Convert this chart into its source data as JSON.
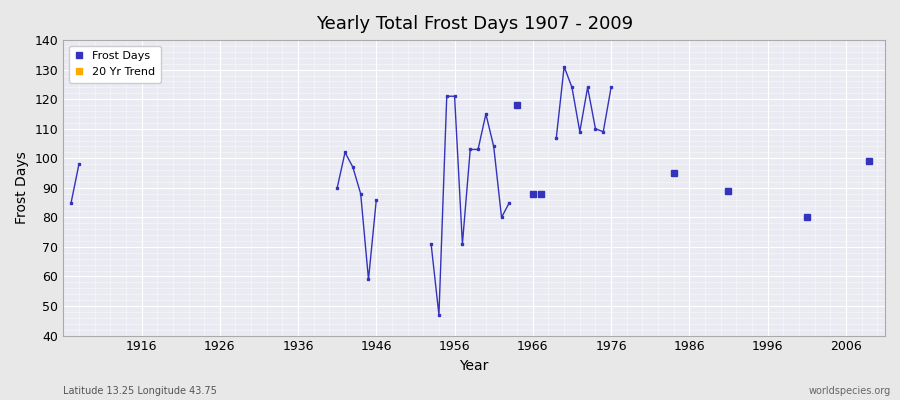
{
  "title": "Yearly Total Frost Days 1907 - 2009",
  "xlabel": "Year",
  "ylabel": "Frost Days",
  "xlim": [
    1906,
    2011
  ],
  "ylim": [
    40,
    140
  ],
  "yticks": [
    40,
    50,
    60,
    70,
    80,
    90,
    100,
    110,
    120,
    130,
    140
  ],
  "xticks": [
    1916,
    1926,
    1936,
    1946,
    1956,
    1966,
    1976,
    1986,
    1996,
    2006
  ],
  "bg_color": "#e8e8e8",
  "plot_bg_color": "#eaeaf2",
  "line_color": "#3333bb",
  "trend_color": "#ffaa00",
  "subtitle_left": "Latitude 13.25 Longitude 43.75",
  "subtitle_right": "worldspecies.org",
  "segments": [
    {
      "years": [
        1907,
        1908
      ],
      "values": [
        85,
        98
      ]
    },
    {
      "years": [
        1941,
        1942,
        1943,
        1944,
        1945,
        1946
      ],
      "values": [
        90,
        102,
        97,
        88,
        59,
        86
      ]
    },
    {
      "years": [
        1953,
        1954,
        1955,
        1956,
        1957,
        1958,
        1959,
        1960,
        1961,
        1962,
        1963
      ],
      "values": [
        71,
        47,
        121,
        121,
        71,
        103,
        103,
        115,
        104,
        80,
        85
      ]
    },
    {
      "years": [
        1969,
        1970,
        1971,
        1972,
        1973,
        1974,
        1975,
        1976
      ],
      "values": [
        107,
        131,
        124,
        109,
        124,
        110,
        109,
        124
      ]
    }
  ],
  "isolated": [
    {
      "year": 1964,
      "value": 118
    },
    {
      "year": 1966,
      "value": 88
    },
    {
      "year": 1967,
      "value": 88
    },
    {
      "year": 1984,
      "value": 95
    },
    {
      "year": 1991,
      "value": 89
    },
    {
      "year": 2001,
      "value": 80
    },
    {
      "year": 2009,
      "value": 99
    }
  ]
}
